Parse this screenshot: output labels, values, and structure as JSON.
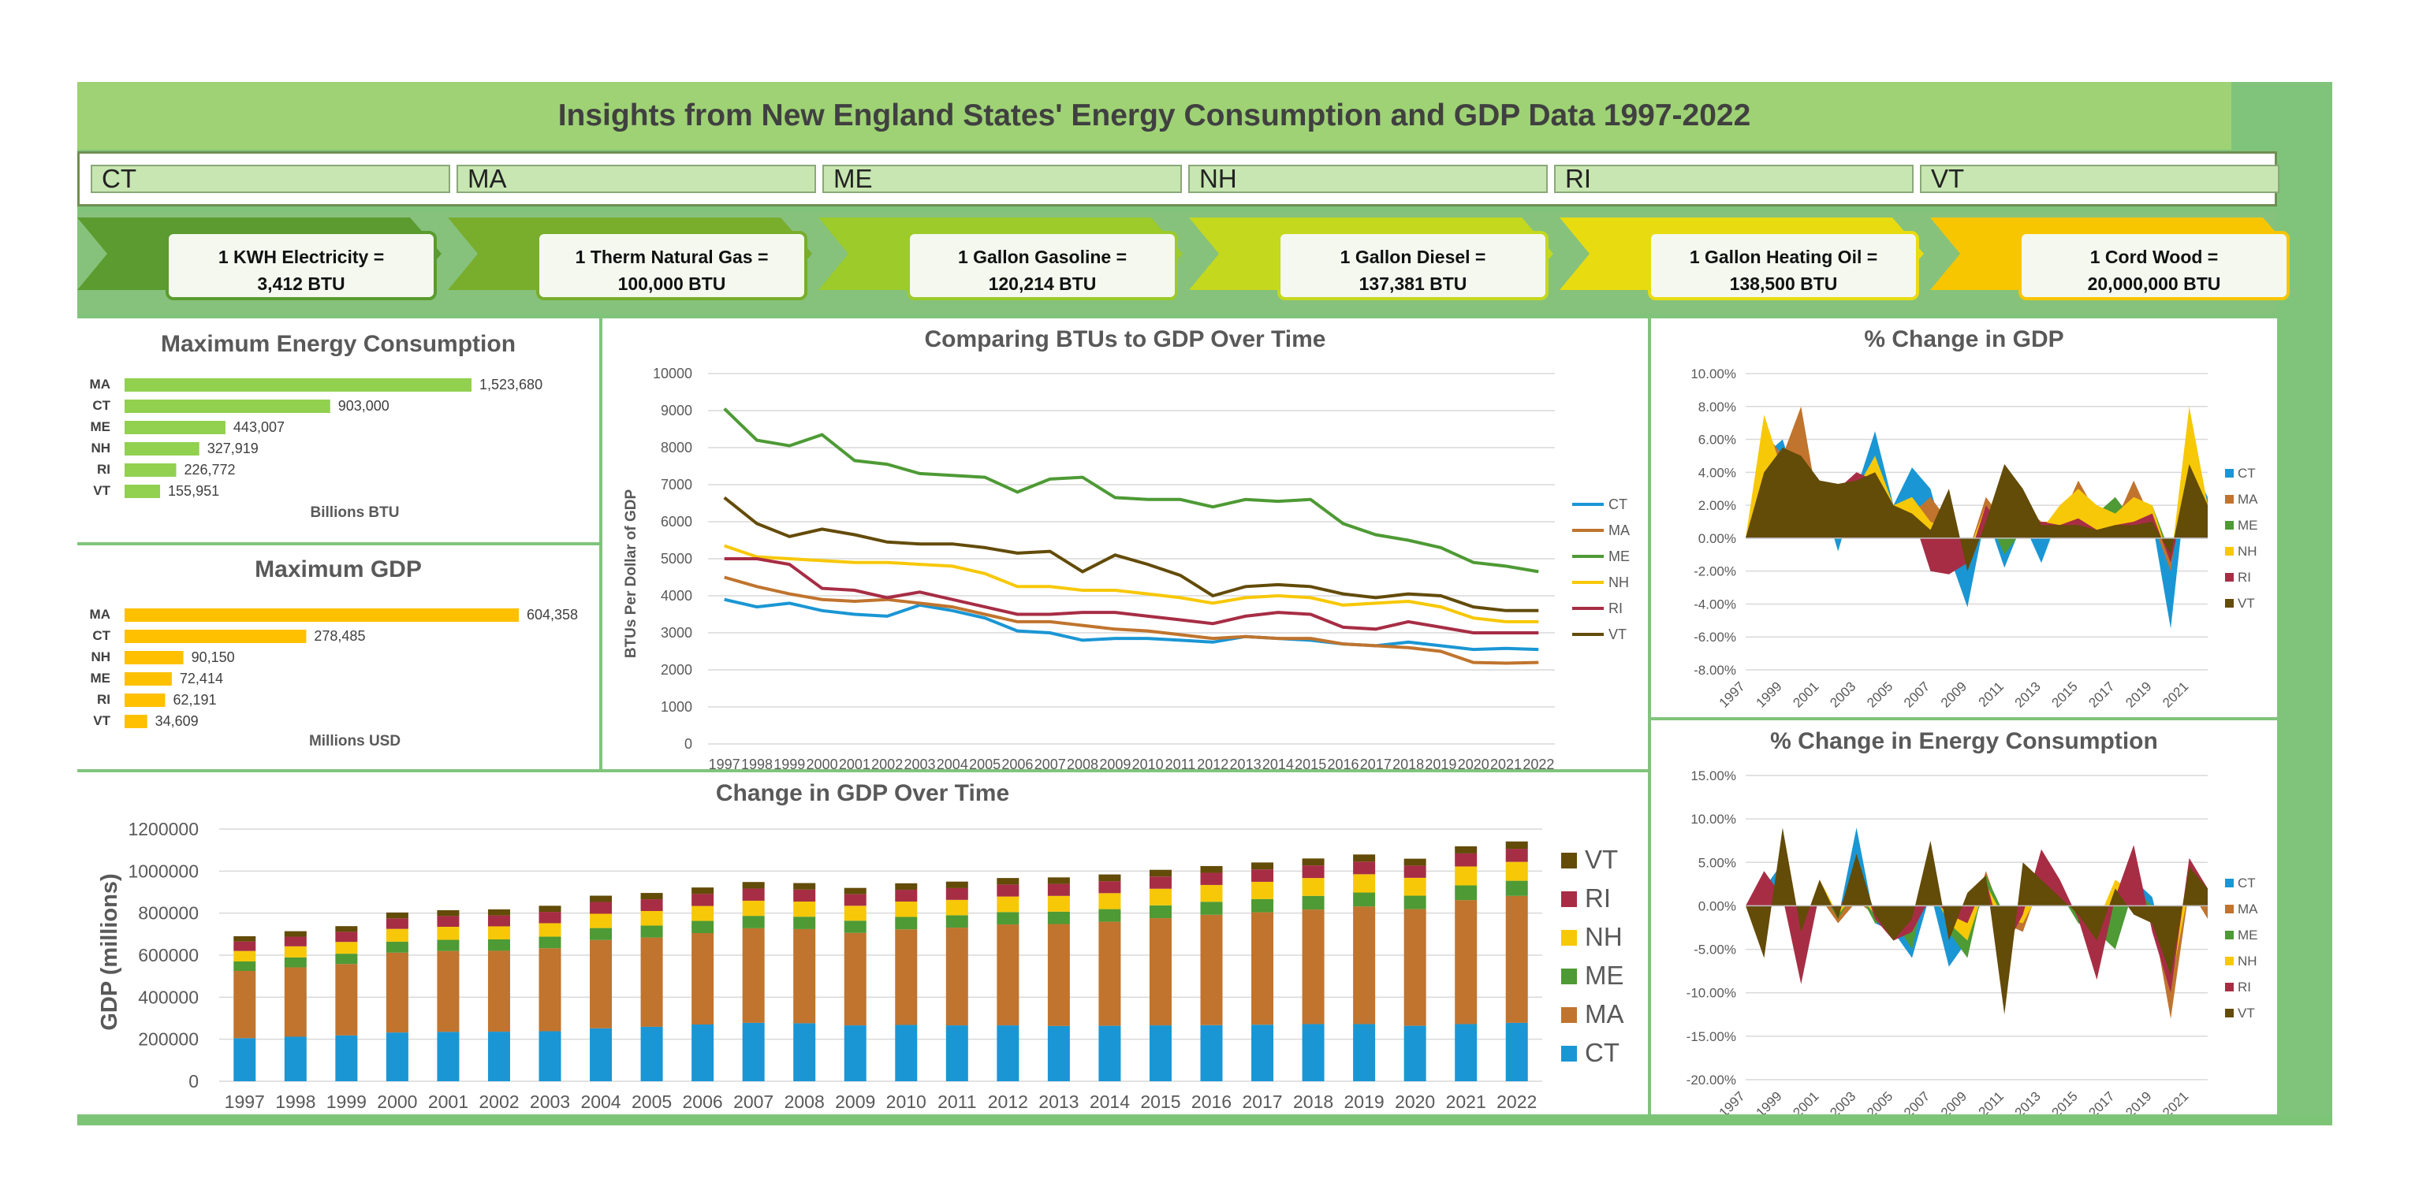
{
  "title": "Insights from New England States' Energy Consumption and GDP Data 1997-2022",
  "slicers": [
    "CT",
    "MA",
    "ME",
    "NH",
    "RI",
    "VT"
  ],
  "conversions": [
    {
      "line1": "1 KWH Electricity =",
      "line2": "3,412 BTU",
      "color": "#5b9b2f"
    },
    {
      "line1": "1 Therm Natural Gas =",
      "line2": "100,000 BTU",
      "color": "#79ad2c"
    },
    {
      "line1": "1 Gallon Gasoline =",
      "line2": "120,214 BTU",
      "color": "#9ccb2a"
    },
    {
      "line1": "1 Gallon Diesel =",
      "line2": "137,381 BTU",
      "color": "#c4d81e"
    },
    {
      "line1": "1 Gallon Heating Oil =",
      "line2": "138,500 BTU",
      "color": "#e8dc10"
    },
    {
      "line1": "1 Cord Wood =",
      "line2": "20,000,000 BTU",
      "color": "#f7c600"
    }
  ],
  "colors": {
    "CT": "#1a96d4",
    "MA": "#c0742e",
    "ME": "#4e9a35",
    "NH": "#f7c808",
    "RI": "#a72d45",
    "VT": "#634b08",
    "energy_bar": "#92d050",
    "gdp_bar": "#ffc000"
  },
  "chart_data": [
    {
      "type": "bar",
      "title": "Maximum Energy Consumption",
      "xlabel": "Billions BTU",
      "categories": [
        "MA",
        "CT",
        "ME",
        "NH",
        "RI",
        "VT"
      ],
      "values": [
        1523680,
        903000,
        443007,
        327919,
        226772,
        155951
      ],
      "value_labels": [
        "1,523,680",
        "903,000",
        "443,007",
        "327,919",
        "226,772",
        "155,951"
      ],
      "orientation": "horizontal"
    },
    {
      "type": "bar",
      "title": "Maximum GDP",
      "xlabel": "Millions USD",
      "categories": [
        "MA",
        "CT",
        "NH",
        "ME",
        "RI",
        "VT"
      ],
      "values": [
        604358,
        278485,
        90150,
        72414,
        62191,
        34609
      ],
      "value_labels": [
        "604,358",
        "278,485",
        "90,150",
        "72,414",
        "62,191",
        "34,609"
      ],
      "orientation": "horizontal"
    },
    {
      "type": "line",
      "title": "Comparing BTUs to GDP Over Time",
      "ylabel": "BTUs Per Dollar of GDP",
      "ylim": [
        0,
        10000
      ],
      "yticks": [
        "0",
        "1000",
        "2000",
        "3000",
        "4000",
        "5000",
        "6000",
        "7000",
        "8000",
        "9000",
        "10000"
      ],
      "x": [
        "1997",
        "1998",
        "1999",
        "2000",
        "2001",
        "2002",
        "2003",
        "2004",
        "2005",
        "2006",
        "2007",
        "2008",
        "2009",
        "2010",
        "2011",
        "2012",
        "2013",
        "2014",
        "2015",
        "2016",
        "2017",
        "2018",
        "2019",
        "2020",
        "2021",
        "2022"
      ],
      "series": [
        {
          "name": "CT",
          "values": [
            3900,
            3700,
            3800,
            3600,
            3500,
            3450,
            3750,
            3600,
            3400,
            3050,
            3000,
            2800,
            2850,
            2850,
            2800,
            2750,
            2900,
            2850,
            2800,
            2700,
            2650,
            2750,
            2650,
            2550,
            2580,
            2550
          ]
        },
        {
          "name": "MA",
          "values": [
            4500,
            4250,
            4050,
            3900,
            3850,
            3900,
            3800,
            3700,
            3500,
            3300,
            3300,
            3200,
            3100,
            3050,
            2950,
            2850,
            2900,
            2850,
            2850,
            2700,
            2650,
            2600,
            2500,
            2200,
            2180,
            2200
          ]
        },
        {
          "name": "ME",
          "values": [
            9050,
            8200,
            8050,
            8350,
            7650,
            7550,
            7300,
            7250,
            7200,
            6800,
            7150,
            7200,
            6650,
            6600,
            6600,
            6400,
            6600,
            6550,
            6600,
            5950,
            5650,
            5500,
            5300,
            4900,
            4800,
            4650
          ]
        },
        {
          "name": "NH",
          "values": [
            5350,
            5050,
            5000,
            4950,
            4900,
            4900,
            4850,
            4800,
            4600,
            4250,
            4250,
            4150,
            4150,
            4050,
            3950,
            3800,
            3950,
            4000,
            3950,
            3750,
            3800,
            3850,
            3700,
            3400,
            3300,
            3300
          ]
        },
        {
          "name": "RI",
          "values": [
            5000,
            5000,
            4850,
            4200,
            4150,
            3950,
            4100,
            3900,
            3700,
            3500,
            3500,
            3550,
            3550,
            3450,
            3350,
            3250,
            3450,
            3550,
            3500,
            3150,
            3100,
            3300,
            3150,
            3000,
            3000,
            3000
          ]
        },
        {
          "name": "VT",
          "values": [
            6650,
            5950,
            5600,
            5800,
            5650,
            5450,
            5400,
            5400,
            5300,
            5150,
            5200,
            4650,
            5100,
            4850,
            4550,
            4000,
            4250,
            4300,
            4250,
            4050,
            3950,
            4050,
            4000,
            3700,
            3600,
            3600
          ]
        }
      ],
      "legend": "right"
    },
    {
      "type": "area",
      "title": "% Change in GDP",
      "ylim": [
        -8,
        10
      ],
      "yticks": [
        "-8.00%",
        "-6.00%",
        "-4.00%",
        "-2.00%",
        "0.00%",
        "2.00%",
        "4.00%",
        "6.00%",
        "8.00%",
        "10.00%"
      ],
      "xticks": [
        "1997",
        "1999",
        "2001",
        "2003",
        "2005",
        "2007",
        "2009",
        "2011",
        "2013",
        "2015",
        "2017",
        "2019",
        "2021"
      ],
      "x": [
        "1997",
        "1998",
        "1999",
        "2000",
        "2001",
        "2002",
        "2003",
        "2004",
        "2005",
        "2006",
        "2007",
        "2008",
        "2009",
        "2010",
        "2011",
        "2012",
        "2013",
        "2014",
        "2015",
        "2016",
        "2017",
        "2018",
        "2019",
        "2020",
        "2021",
        "2022"
      ],
      "series": [
        {
          "name": "CT",
          "values": [
            0,
            5.0,
            6.0,
            2.5,
            3.0,
            -0.8,
            3.0,
            6.5,
            2.0,
            4.3,
            3.0,
            -1.0,
            -4.2,
            1.5,
            -1.8,
            1.0,
            -1.5,
            1.5,
            2.5,
            1.0,
            1.5,
            1.0,
            1.0,
            -5.5,
            4.8,
            2.5
          ]
        },
        {
          "name": "MA",
          "values": [
            0,
            6.5,
            5.0,
            8.0,
            1.5,
            1.0,
            2.0,
            4.5,
            1.5,
            1.5,
            2.5,
            1.0,
            -1.0,
            2.5,
            1.0,
            2.0,
            1.0,
            1.0,
            3.5,
            1.5,
            1.0,
            3.5,
            1.0,
            -2.0,
            6.0,
            2.0
          ]
        },
        {
          "name": "ME",
          "values": [
            0,
            5.5,
            4.0,
            3.0,
            3.0,
            2.5,
            3.0,
            2.0,
            1.0,
            0.8,
            0.8,
            0.0,
            -1.0,
            1.5,
            -1.0,
            0.5,
            0.5,
            1.0,
            1.5,
            1.5,
            2.5,
            1.0,
            2.0,
            -1.0,
            4.0,
            1.5
          ]
        },
        {
          "name": "NH",
          "values": [
            0,
            7.5,
            4.0,
            5.0,
            3.0,
            2.0,
            3.0,
            5.0,
            2.0,
            2.5,
            1.0,
            0.5,
            -1.0,
            2.0,
            0.5,
            1.0,
            0.5,
            2.0,
            3.0,
            2.0,
            1.5,
            2.5,
            2.0,
            -1.5,
            8.0,
            2.0
          ]
        },
        {
          "name": "RI",
          "values": [
            0,
            4.0,
            5.0,
            4.0,
            3.5,
            3.0,
            4.0,
            3.5,
            1.5,
            1.5,
            -2.0,
            -2.2,
            -1.5,
            2.0,
            0.5,
            0.5,
            1.0,
            0.8,
            1.2,
            0.5,
            0.8,
            1.0,
            1.5,
            -1.5,
            3.5,
            2.0
          ]
        },
        {
          "name": "VT",
          "values": [
            0,
            4.0,
            5.5,
            5.0,
            3.5,
            3.3,
            3.5,
            4.0,
            2.0,
            1.5,
            0.5,
            3.0,
            -2.0,
            1.0,
            4.5,
            3.0,
            0.8,
            0.8,
            0.8,
            0.5,
            0.8,
            0.8,
            1.0,
            -1.0,
            4.5,
            2.0
          ]
        }
      ],
      "legend": "right"
    },
    {
      "type": "area",
      "title": "% Change in Energy Consumption",
      "ylim": [
        -20,
        15
      ],
      "yticks": [
        "-20.00%",
        "-15.00%",
        "-10.00%",
        "-5.00%",
        "0.00%",
        "5.00%",
        "10.00%",
        "15.00%"
      ],
      "xticks": [
        "1997",
        "1999",
        "2001",
        "2003",
        "2005",
        "2007",
        "2009",
        "2011",
        "2013",
        "2015",
        "2017",
        "2019",
        "2021"
      ],
      "x": [
        "1997",
        "1998",
        "1999",
        "2000",
        "2001",
        "2002",
        "2003",
        "2004",
        "2005",
        "2006",
        "2007",
        "2008",
        "2009",
        "2010",
        "2011",
        "2012",
        "2013",
        "2014",
        "2015",
        "2016",
        "2017",
        "2018",
        "2019",
        "2020",
        "2021",
        "2022"
      ],
      "series": [
        {
          "name": "CT",
          "values": [
            0,
            2.0,
            5.0,
            -4.0,
            1.5,
            -1.5,
            9.0,
            -2.0,
            -3.0,
            -6.0,
            1.5,
            -7.0,
            -4.0,
            2.0,
            -4.0,
            -1.0,
            3.0,
            1.0,
            -1.0,
            -3.0,
            1.0,
            3.0,
            1.0,
            -8.0,
            3.0,
            -1.0
          ]
        },
        {
          "name": "MA",
          "values": [
            0,
            1.0,
            3.0,
            -3.0,
            1.0,
            -2.0,
            0.5,
            -1.0,
            -2.0,
            -4.0,
            3.0,
            -2.0,
            -3.0,
            4.0,
            -2.0,
            -3.0,
            3.0,
            2.0,
            -1.0,
            -2.0,
            2.0,
            2.0,
            -1.0,
            -13.0,
            2.0,
            -1.5
          ]
        },
        {
          "name": "ME",
          "values": [
            0,
            1.5,
            2.0,
            -6.0,
            2.0,
            -1.5,
            2.0,
            -2.0,
            -1.5,
            -5.0,
            5.0,
            -3.0,
            -6.0,
            3.5,
            -1.0,
            -1.5,
            2.0,
            1.5,
            -2.0,
            -3.0,
            -5.0,
            2.0,
            0.0,
            -7.0,
            3.0,
            1.0
          ]
        },
        {
          "name": "NH",
          "values": [
            0,
            2.0,
            2.0,
            -3.0,
            3.0,
            -1.0,
            1.5,
            -1.0,
            -2.0,
            -3.0,
            2.0,
            -2.0,
            -4.0,
            2.5,
            -1.5,
            -2.0,
            2.0,
            1.0,
            -1.0,
            -2.0,
            3.0,
            1.5,
            -1.0,
            -9.0,
            2.0,
            0.5
          ]
        },
        {
          "name": "RI",
          "values": [
            0,
            4.0,
            1.0,
            -9.0,
            1.5,
            -1.0,
            5.0,
            -1.5,
            -4.0,
            -3.0,
            1.0,
            -1.0,
            -2.0,
            3.0,
            -5.0,
            -1.0,
            6.5,
            3.0,
            -1.5,
            -8.5,
            1.0,
            7.0,
            -3.0,
            -10.0,
            5.5,
            2.0
          ]
        },
        {
          "name": "VT",
          "values": [
            0,
            -6.0,
            9.0,
            -3.0,
            3.0,
            -1.5,
            6.0,
            -1.0,
            -4.0,
            -1.5,
            7.5,
            -4.0,
            1.5,
            3.5,
            -12.5,
            5.0,
            3.0,
            1.0,
            -1.0,
            -4.0,
            2.0,
            -1.0,
            -2.0,
            -8.0,
            4.5,
            2.0
          ]
        }
      ],
      "legend": "right"
    },
    {
      "type": "bar",
      "stacked": true,
      "title": "Change in GDP Over Time",
      "ylabel": "GDP (millions)",
      "ylim": [
        0,
        1200000
      ],
      "yticks": [
        "0",
        "200000",
        "400000",
        "600000",
        "800000",
        "1000000",
        "1200000"
      ],
      "categories": [
        "1997",
        "1998",
        "1999",
        "2000",
        "2001",
        "2002",
        "2003",
        "2004",
        "2005",
        "2006",
        "2007",
        "2008",
        "2009",
        "2010",
        "2011",
        "2012",
        "2013",
        "2014",
        "2015",
        "2016",
        "2017",
        "2018",
        "2019",
        "2020",
        "2021",
        "2022"
      ],
      "series": [
        {
          "name": "CT",
          "values": [
            205000,
            212000,
            218000,
            232000,
            235000,
            236000,
            238000,
            252000,
            259000,
            270000,
            278000,
            276000,
            266000,
            268000,
            266000,
            266000,
            263000,
            264000,
            266000,
            267000,
            269000,
            272000,
            272000,
            264000,
            272000,
            278000
          ]
        },
        {
          "name": "MA",
          "values": [
            320000,
            330000,
            340000,
            380000,
            385000,
            385000,
            395000,
            420000,
            425000,
            435000,
            450000,
            448000,
            440000,
            455000,
            465000,
            480000,
            485000,
            495000,
            510000,
            525000,
            535000,
            545000,
            560000,
            555000,
            590000,
            604000
          ]
        },
        {
          "name": "ME",
          "values": [
            45000,
            47000,
            49000,
            52000,
            53000,
            54000,
            55000,
            57000,
            57000,
            58000,
            59000,
            59000,
            58000,
            59000,
            59000,
            59000,
            59000,
            60000,
            61000,
            62000,
            63000,
            65000,
            66000,
            64000,
            70000,
            72000
          ]
        },
        {
          "name": "NH",
          "values": [
            50000,
            53000,
            56000,
            61000,
            62000,
            62000,
            64000,
            68000,
            69000,
            71000,
            72000,
            72000,
            71000,
            73000,
            73000,
            74000,
            75000,
            76000,
            79000,
            80000,
            82000,
            85000,
            87000,
            85000,
            90000,
            90000
          ]
        },
        {
          "name": "RI",
          "values": [
            45000,
            46000,
            48000,
            50000,
            51000,
            52000,
            54000,
            56000,
            56000,
            57000,
            58000,
            57000,
            55000,
            56000,
            56000,
            57000,
            57000,
            57000,
            58000,
            58000,
            59000,
            60000,
            60000,
            58000,
            62000,
            62000
          ]
        },
        {
          "name": "VT",
          "values": [
            25000,
            26000,
            27000,
            28000,
            28000,
            29000,
            29000,
            30000,
            30000,
            31000,
            31000,
            31000,
            30000,
            31000,
            31000,
            31000,
            31000,
            32000,
            32000,
            32000,
            33000,
            33000,
            34000,
            33000,
            34000,
            35000
          ]
        }
      ],
      "legend": "right"
    }
  ]
}
